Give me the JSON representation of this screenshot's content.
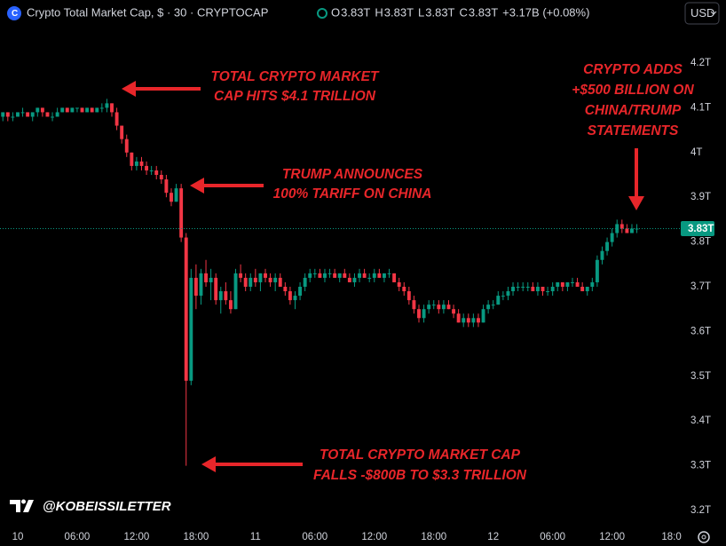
{
  "chart_data": {
    "type": "candlestick",
    "title": "Crypto Total Market Cap, $ · 30 · CRYPTOCAP",
    "header_values": [
      {
        "key": "O",
        "text": "3.83T"
      },
      {
        "key": "H",
        "text": "3.83T"
      },
      {
        "key": "L",
        "text": "3.83T"
      },
      {
        "key": "C",
        "text": "3.83T"
      }
    ],
    "change_text": "+3.17B (+0.08%)",
    "currency_button": "USD",
    "watermark": "@KOBEISSILETTER",
    "up_color": "#089981",
    "down_color": "#f23645",
    "last_price": {
      "value": 3.83,
      "label": "3.83T"
    },
    "ylim": [
      3.17,
      4.31
    ],
    "yticks": [
      {
        "value": 3.2,
        "label": "3.2T"
      },
      {
        "value": 3.3,
        "label": "3.3T"
      },
      {
        "value": 3.4,
        "label": "3.4T"
      },
      {
        "value": 3.5,
        "label": "3.5T"
      },
      {
        "value": 3.6,
        "label": "3.6T"
      },
      {
        "value": 3.7,
        "label": "3.7T"
      },
      {
        "value": 3.8,
        "label": "3.8T"
      },
      {
        "value": 3.9,
        "label": "3.9T"
      },
      {
        "value": 4,
        "label": "4T"
      },
      {
        "value": 4.1,
        "label": "4.1T"
      },
      {
        "value": 4.2,
        "label": "4.2T"
      }
    ],
    "xlim": [
      -0.58,
      137.4
    ],
    "xticks": [
      {
        "value": 3,
        "label": "10"
      },
      {
        "value": 15,
        "label": "06:00"
      },
      {
        "value": 27,
        "label": "12:00"
      },
      {
        "value": 39,
        "label": "18:00"
      },
      {
        "value": 51,
        "label": "11"
      },
      {
        "value": 63,
        "label": "06:00"
      },
      {
        "value": 75,
        "label": "12:00"
      },
      {
        "value": 87,
        "label": "18:00"
      },
      {
        "value": 99,
        "label": "12"
      },
      {
        "value": 111,
        "label": "06:00"
      },
      {
        "value": 123,
        "label": "12:00"
      },
      {
        "value": 135,
        "label": "18:0"
      }
    ],
    "annotations": [
      {
        "lines": [
          "TOTAL CRYPTO MARKET",
          "CAP HITS $4.1 TRILLION"
        ]
      },
      {
        "lines": [
          "TRUMP ANNOUNCES",
          "100% TARIFF ON CHINA"
        ]
      },
      {
        "lines": [
          "TOTAL CRYPTO MARKET CAP",
          "FALLS -$800B TO $3.3 TRILLION"
        ]
      },
      {
        "lines": [
          "CRYPTO ADDS",
          "+$500 BILLION ON",
          "CHINA/TRUMP",
          "STATEMENTS"
        ]
      }
    ],
    "candles": [
      [
        4.08,
        4.09,
        4.07,
        4.09
      ],
      [
        4.09,
        4.09,
        4.07,
        4.08
      ],
      [
        4.08,
        4.09,
        4.07,
        4.08
      ],
      [
        4.08,
        4.09,
        4.08,
        4.09
      ],
      [
        4.09,
        4.1,
        4.08,
        4.09
      ],
      [
        4.09,
        4.09,
        4.08,
        4.08
      ],
      [
        4.08,
        4.09,
        4.07,
        4.09
      ],
      [
        4.09,
        4.1,
        4.08,
        4.1
      ],
      [
        4.1,
        4.1,
        4.08,
        4.09
      ],
      [
        4.09,
        4.09,
        4.08,
        4.08
      ],
      [
        4.08,
        4.09,
        4.07,
        4.08
      ],
      [
        4.08,
        4.1,
        4.08,
        4.09
      ],
      [
        4.09,
        4.1,
        4.09,
        4.1
      ],
      [
        4.1,
        4.1,
        4.09,
        4.09
      ],
      [
        4.09,
        4.1,
        4.09,
        4.1
      ],
      [
        4.1,
        4.1,
        4.09,
        4.1
      ],
      [
        4.1,
        4.1,
        4.09,
        4.09
      ],
      [
        4.09,
        4.1,
        4.09,
        4.1
      ],
      [
        4.1,
        4.1,
        4.09,
        4.09
      ],
      [
        4.09,
        4.1,
        4.09,
        4.1
      ],
      [
        4.1,
        4.11,
        4.09,
        4.1
      ],
      [
        4.1,
        4.12,
        4.09,
        4.11
      ],
      [
        4.11,
        4.11,
        4.08,
        4.09
      ],
      [
        4.09,
        4.1,
        4.05,
        4.06
      ],
      [
        4.06,
        4.06,
        4.02,
        4.03
      ],
      [
        4.03,
        4.04,
        3.99,
        4.0
      ],
      [
        4.0,
        4.0,
        3.96,
        3.97
      ],
      [
        3.97,
        3.99,
        3.96,
        3.98
      ],
      [
        3.98,
        3.99,
        3.96,
        3.97
      ],
      [
        3.97,
        3.98,
        3.95,
        3.96
      ],
      [
        3.96,
        3.97,
        3.95,
        3.96
      ],
      [
        3.96,
        3.97,
        3.94,
        3.95
      ],
      [
        3.95,
        3.96,
        3.93,
        3.94
      ],
      [
        3.94,
        3.95,
        3.9,
        3.91
      ],
      [
        3.91,
        3.92,
        3.88,
        3.89
      ],
      [
        3.89,
        3.93,
        3.89,
        3.92
      ],
      [
        3.92,
        3.93,
        3.8,
        3.81
      ],
      [
        3.81,
        3.82,
        3.3,
        3.49
      ],
      [
        3.49,
        3.74,
        3.48,
        3.72
      ],
      [
        3.72,
        3.75,
        3.65,
        3.68
      ],
      [
        3.68,
        3.74,
        3.66,
        3.73
      ],
      [
        3.73,
        3.76,
        3.7,
        3.71
      ],
      [
        3.71,
        3.74,
        3.67,
        3.72
      ],
      [
        3.72,
        3.73,
        3.66,
        3.67
      ],
      [
        3.67,
        3.7,
        3.64,
        3.69
      ],
      [
        3.69,
        3.71,
        3.66,
        3.67
      ],
      [
        3.67,
        3.69,
        3.64,
        3.65
      ],
      [
        3.65,
        3.74,
        3.65,
        3.73
      ],
      [
        3.73,
        3.75,
        3.71,
        3.72
      ],
      [
        3.72,
        3.73,
        3.69,
        3.7
      ],
      [
        3.7,
        3.73,
        3.69,
        3.72
      ],
      [
        3.72,
        3.74,
        3.7,
        3.71
      ],
      [
        3.71,
        3.73,
        3.69,
        3.73
      ],
      [
        3.73,
        3.74,
        3.71,
        3.72
      ],
      [
        3.72,
        3.73,
        3.7,
        3.71
      ],
      [
        3.71,
        3.73,
        3.69,
        3.72
      ],
      [
        3.72,
        3.73,
        3.7,
        3.7
      ],
      [
        3.7,
        3.71,
        3.68,
        3.69
      ],
      [
        3.69,
        3.7,
        3.66,
        3.67
      ],
      [
        3.67,
        3.69,
        3.65,
        3.68
      ],
      [
        3.68,
        3.71,
        3.67,
        3.7
      ],
      [
        3.7,
        3.73,
        3.69,
        3.72
      ],
      [
        3.72,
        3.74,
        3.71,
        3.73
      ],
      [
        3.73,
        3.74,
        3.72,
        3.73
      ],
      [
        3.73,
        3.74,
        3.72,
        3.72
      ],
      [
        3.72,
        3.74,
        3.71,
        3.73
      ],
      [
        3.73,
        3.74,
        3.72,
        3.73
      ],
      [
        3.73,
        3.74,
        3.72,
        3.72
      ],
      [
        3.72,
        3.73,
        3.71,
        3.73
      ],
      [
        3.73,
        3.74,
        3.72,
        3.72
      ],
      [
        3.72,
        3.73,
        3.71,
        3.71
      ],
      [
        3.71,
        3.73,
        3.7,
        3.72
      ],
      [
        3.72,
        3.74,
        3.71,
        3.73
      ],
      [
        3.73,
        3.74,
        3.72,
        3.72
      ],
      [
        3.72,
        3.73,
        3.71,
        3.72
      ],
      [
        3.72,
        3.74,
        3.71,
        3.73
      ],
      [
        3.73,
        3.74,
        3.72,
        3.72
      ],
      [
        3.72,
        3.73,
        3.71,
        3.73
      ],
      [
        3.73,
        3.74,
        3.72,
        3.73
      ],
      [
        3.73,
        3.73,
        3.71,
        3.71
      ],
      [
        3.71,
        3.72,
        3.69,
        3.7
      ],
      [
        3.7,
        3.71,
        3.68,
        3.69
      ],
      [
        3.69,
        3.7,
        3.66,
        3.67
      ],
      [
        3.67,
        3.68,
        3.64,
        3.65
      ],
      [
        3.65,
        3.66,
        3.62,
        3.63
      ],
      [
        3.63,
        3.66,
        3.62,
        3.65
      ],
      [
        3.65,
        3.67,
        3.64,
        3.66
      ],
      [
        3.66,
        3.67,
        3.65,
        3.66
      ],
      [
        3.66,
        3.67,
        3.64,
        3.65
      ],
      [
        3.65,
        3.67,
        3.64,
        3.66
      ],
      [
        3.66,
        3.67,
        3.65,
        3.65
      ],
      [
        3.65,
        3.66,
        3.63,
        3.64
      ],
      [
        3.64,
        3.65,
        3.62,
        3.62
      ],
      [
        3.62,
        3.64,
        3.61,
        3.63
      ],
      [
        3.63,
        3.64,
        3.61,
        3.62
      ],
      [
        3.62,
        3.64,
        3.61,
        3.63
      ],
      [
        3.63,
        3.64,
        3.61,
        3.62
      ],
      [
        3.62,
        3.66,
        3.62,
        3.65
      ],
      [
        3.65,
        3.67,
        3.64,
        3.66
      ],
      [
        3.66,
        3.67,
        3.65,
        3.66
      ],
      [
        3.66,
        3.69,
        3.66,
        3.68
      ],
      [
        3.68,
        3.69,
        3.67,
        3.68
      ],
      [
        3.68,
        3.7,
        3.67,
        3.69
      ],
      [
        3.69,
        3.71,
        3.68,
        3.7
      ],
      [
        3.7,
        3.71,
        3.69,
        3.7
      ],
      [
        3.7,
        3.71,
        3.69,
        3.7
      ],
      [
        3.7,
        3.71,
        3.69,
        3.7
      ],
      [
        3.7,
        3.71,
        3.69,
        3.69
      ],
      [
        3.69,
        3.71,
        3.68,
        3.7
      ],
      [
        3.7,
        3.7,
        3.68,
        3.69
      ],
      [
        3.69,
        3.7,
        3.68,
        3.69
      ],
      [
        3.69,
        3.71,
        3.68,
        3.7
      ],
      [
        3.7,
        3.71,
        3.69,
        3.71
      ],
      [
        3.71,
        3.71,
        3.69,
        3.7
      ],
      [
        3.7,
        3.71,
        3.69,
        3.71
      ],
      [
        3.71,
        3.72,
        3.7,
        3.71
      ],
      [
        3.71,
        3.72,
        3.7,
        3.7
      ],
      [
        3.7,
        3.71,
        3.69,
        3.69
      ],
      [
        3.69,
        3.7,
        3.68,
        3.7
      ],
      [
        3.7,
        3.72,
        3.69,
        3.71
      ],
      [
        3.71,
        3.77,
        3.7,
        3.76
      ],
      [
        3.76,
        3.79,
        3.75,
        3.78
      ],
      [
        3.78,
        3.81,
        3.77,
        3.8
      ],
      [
        3.8,
        3.83,
        3.79,
        3.82
      ],
      [
        3.82,
        3.85,
        3.81,
        3.84
      ],
      [
        3.84,
        3.85,
        3.82,
        3.83
      ],
      [
        3.83,
        3.84,
        3.82,
        3.82
      ],
      [
        3.82,
        3.84,
        3.82,
        3.83
      ],
      [
        3.83,
        3.84,
        3.82,
        3.83
      ]
    ]
  }
}
